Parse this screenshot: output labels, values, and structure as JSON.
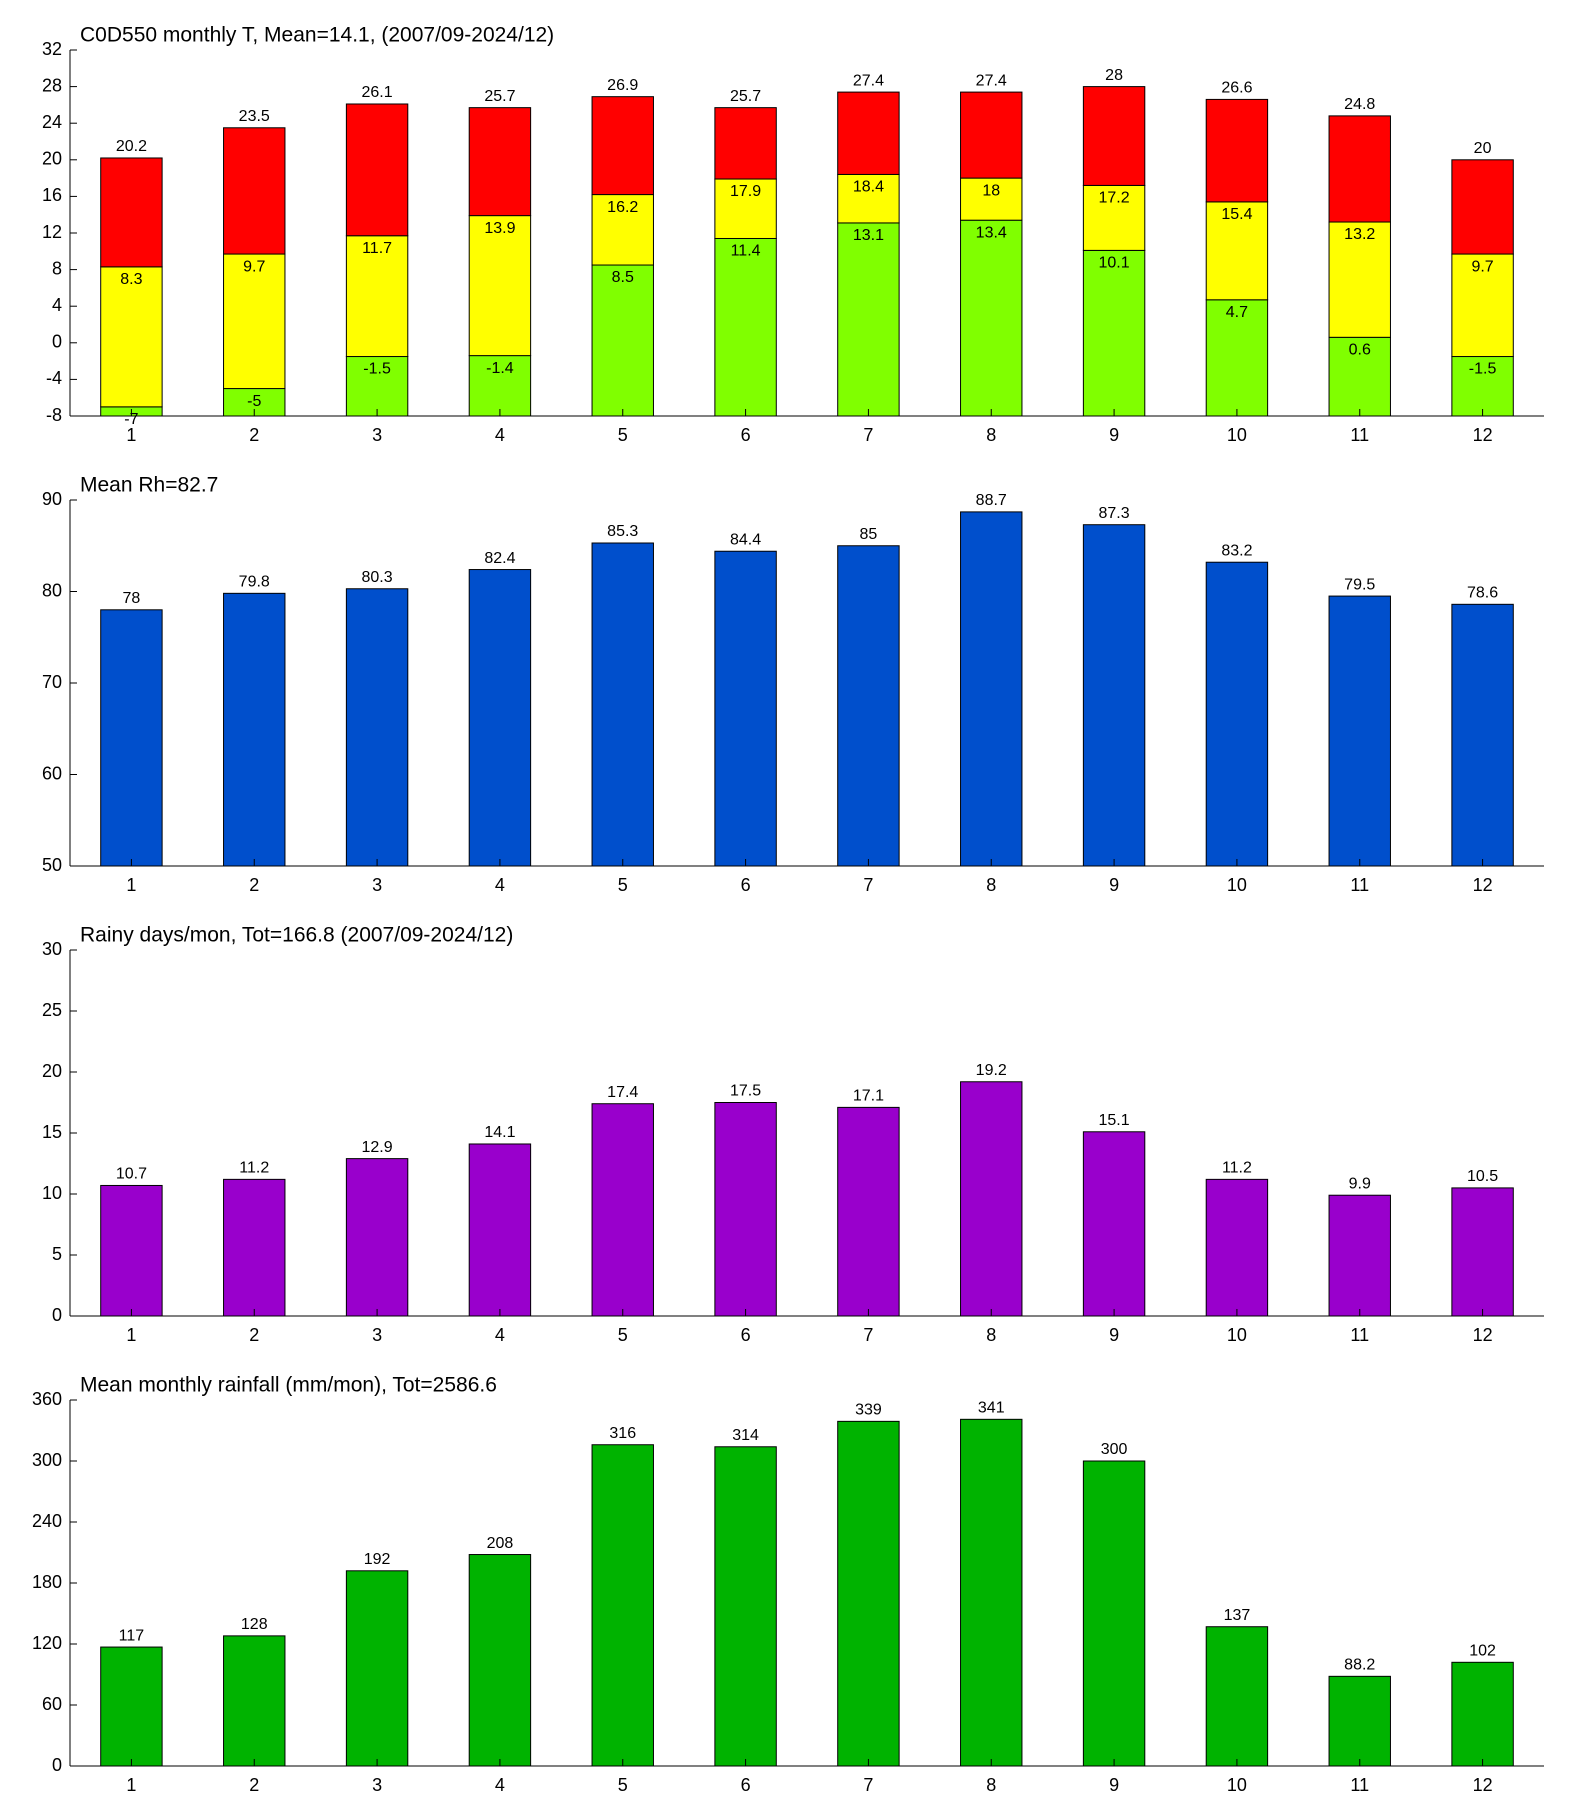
{
  "chart_data": [
    {
      "type": "range_bar",
      "title": "C0D550 monthly T, Mean=14.1, (2007/09-2024/12)",
      "categories": [
        1,
        2,
        3,
        4,
        5,
        6,
        7,
        8,
        9,
        10,
        11,
        12
      ],
      "series": [
        {
          "color": "#80ff00",
          "label_position": "inside",
          "values": [
            -7,
            -5,
            -1.5,
            -1.4,
            8.5,
            11.4,
            13.1,
            13.4,
            10.1,
            4.7,
            0.6,
            -1.5
          ]
        },
        {
          "color": "#ffff00",
          "label_position": "inside",
          "values": [
            8.3,
            9.7,
            11.7,
            13.9,
            16.2,
            17.9,
            18.4,
            18,
            17.2,
            15.4,
            13.2,
            9.7
          ]
        },
        {
          "color": "#ff0000",
          "label_position": "above",
          "values": [
            20.2,
            23.5,
            26.1,
            25.7,
            26.9,
            25.7,
            27.4,
            27.4,
            28,
            26.6,
            24.8,
            20
          ]
        }
      ],
      "ylim": [
        -8,
        32
      ],
      "yticks": [
        -8,
        -4,
        0,
        4,
        8,
        12,
        16,
        20,
        24,
        28,
        32
      ]
    },
    {
      "type": "bar",
      "title": "Mean Rh=82.7",
      "categories": [
        1,
        2,
        3,
        4,
        5,
        6,
        7,
        8,
        9,
        10,
        11,
        12
      ],
      "values": [
        78,
        79.8,
        80.3,
        82.4,
        85.3,
        84.4,
        85,
        88.7,
        87.3,
        83.2,
        79.5,
        78.6
      ],
      "color": "#004fcc",
      "ylim": [
        50,
        90
      ],
      "yticks": [
        50,
        60,
        70,
        80,
        90
      ]
    },
    {
      "type": "bar",
      "title": "Rainy days/mon, Tot=166.8 (2007/09-2024/12)",
      "categories": [
        1,
        2,
        3,
        4,
        5,
        6,
        7,
        8,
        9,
        10,
        11,
        12
      ],
      "values": [
        10.7,
        11.2,
        12.9,
        14.1,
        17.4,
        17.5,
        17.1,
        19.2,
        15.1,
        11.2,
        9.9,
        10.5
      ],
      "color": "#9900cc",
      "ylim": [
        0,
        30
      ],
      "yticks": [
        0,
        5,
        10,
        15,
        20,
        25,
        30
      ]
    },
    {
      "type": "bar",
      "title": "Mean monthly rainfall (mm/mon), Tot=2586.6",
      "categories": [
        1,
        2,
        3,
        4,
        5,
        6,
        7,
        8,
        9,
        10,
        11,
        12
      ],
      "values": [
        117,
        128,
        192,
        208,
        316,
        314,
        339,
        341,
        300,
        137,
        88.2,
        102
      ],
      "color": "#00b300",
      "ylim": [
        0,
        360
      ],
      "yticks": [
        0,
        60,
        120,
        180,
        240,
        300,
        360
      ]
    }
  ]
}
